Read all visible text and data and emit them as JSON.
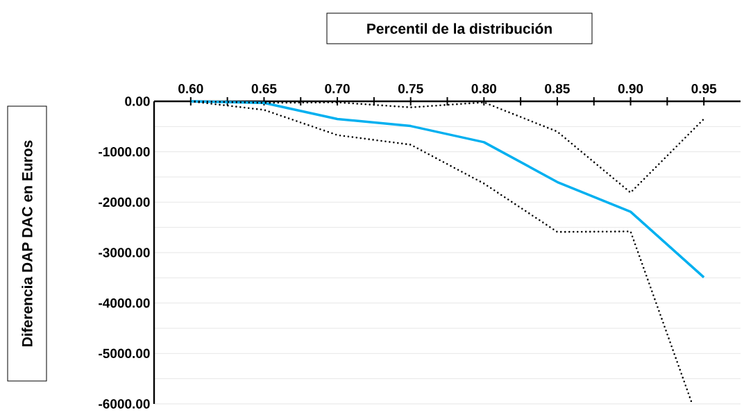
{
  "chart_data": {
    "type": "line",
    "title": "Percentil de la distribución",
    "ylabel": "Diferencia DAP DAC en Euros",
    "x": [
      0.6,
      0.65,
      0.7,
      0.75,
      0.8,
      0.85,
      0.9,
      0.95
    ],
    "xlim": [
      0.575,
      0.975
    ],
    "xticks": [
      {
        "value": 0.6,
        "label": "0.60"
      },
      {
        "value": 0.625,
        "label": null
      },
      {
        "value": 0.65,
        "label": "0.65"
      },
      {
        "value": 0.675,
        "label": null
      },
      {
        "value": 0.7,
        "label": "0.70"
      },
      {
        "value": 0.725,
        "label": null
      },
      {
        "value": 0.75,
        "label": "0.75"
      },
      {
        "value": 0.775,
        "label": null
      },
      {
        "value": 0.8,
        "label": "0.80"
      },
      {
        "value": 0.825,
        "label": null
      },
      {
        "value": 0.85,
        "label": "0.85"
      },
      {
        "value": 0.875,
        "label": null
      },
      {
        "value": 0.9,
        "label": "0.90"
      },
      {
        "value": 0.925,
        "label": null
      },
      {
        "value": 0.95,
        "label": "0.95"
      }
    ],
    "ylim": [
      -6000,
      0
    ],
    "yticks": [
      {
        "value": 0,
        "label": "0.00"
      },
      {
        "value": -500,
        "label": null
      },
      {
        "value": -1000,
        "label": "-1000.00"
      },
      {
        "value": -1500,
        "label": null
      },
      {
        "value": -2000,
        "label": "-2000.00"
      },
      {
        "value": -2500,
        "label": null
      },
      {
        "value": -3000,
        "label": "-3000.00"
      },
      {
        "value": -3500,
        "label": null
      },
      {
        "value": -4000,
        "label": "-4000.00"
      },
      {
        "value": -4500,
        "label": null
      },
      {
        "value": -5000,
        "label": "-5000.00"
      },
      {
        "value": -5500,
        "label": null
      },
      {
        "value": -6000,
        "label": "-6000.00"
      }
    ],
    "grid": "y",
    "series": [
      {
        "color": "#00b0f0",
        "line_style": "solid",
        "values": [
          0,
          -30,
          -350,
          -490,
          -810,
          -1600,
          -2190,
          -3490
        ]
      },
      {
        "color": "#000000",
        "line_style": "dotted",
        "values": [
          0,
          -30,
          -20,
          -120,
          -20,
          -600,
          -1810,
          -350
        ]
      },
      {
        "color": "#000000",
        "line_style": "dotted",
        "x": [
          0.6,
          0.65,
          0.7,
          0.75,
          0.8,
          0.85,
          0.9,
          0.942
        ],
        "values": [
          0,
          -170,
          -670,
          -860,
          -1630,
          -2590,
          -2580,
          -6000
        ]
      }
    ]
  }
}
